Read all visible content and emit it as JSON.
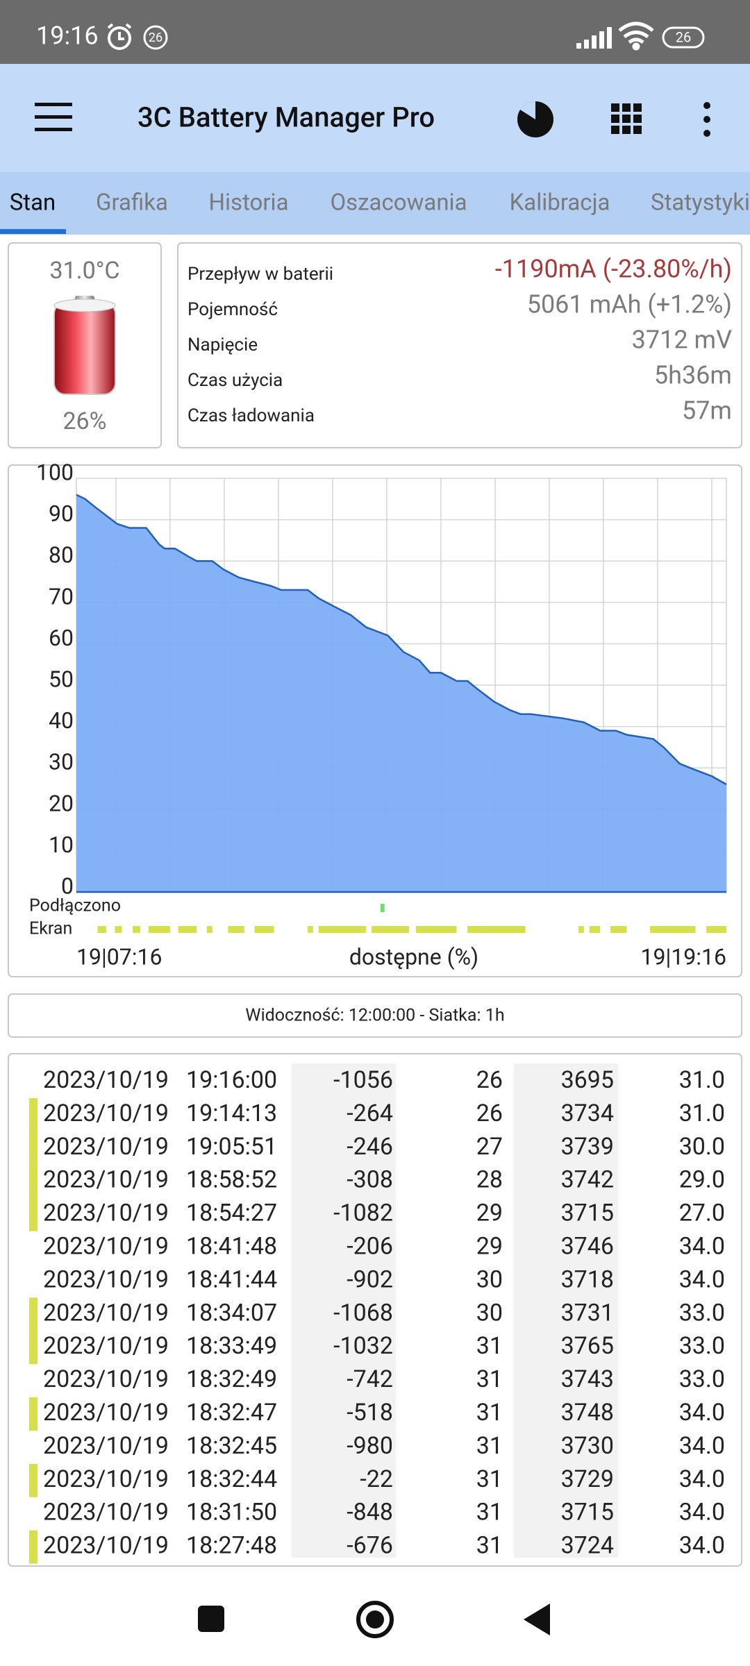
{
  "status_bar": {
    "time": "19:16",
    "notification": "26",
    "battery": "26"
  },
  "app_bar": {
    "title": "3C Battery Manager Pro"
  },
  "tabs": [
    "Stan",
    "Grafika",
    "Historia",
    "Oszacowania",
    "Kalibracja",
    "Statystyki"
  ],
  "battery": {
    "temperature": "31.0°C",
    "level": "26%"
  },
  "stats": [
    {
      "label": "Przepływ w baterii",
      "value": "-1190mA (-23.80%/h)"
    },
    {
      "label": "Pojemność",
      "value": "5061 mAh (+1.2%)"
    },
    {
      "label": "Napięcie",
      "value": "3712 mV"
    },
    {
      "label": "Czas użycia",
      "value": "5h36m"
    },
    {
      "label": "Czas ładowania",
      "value": "57m"
    }
  ],
  "chart_data": {
    "type": "area",
    "x_label": "dostępne (%)",
    "plugged_label": "Podłączono",
    "screen_label": "Ekran",
    "x": [
      0,
      0.16,
      0.35,
      0.55,
      0.75,
      0.98,
      1.29,
      1.53,
      1.63,
      1.82,
      2.08,
      2.22,
      2.51,
      2.71,
      3.0,
      3.29,
      3.59,
      3.78,
      4.27,
      4.47,
      4.76,
      5.06,
      5.35,
      5.55,
      5.75,
      6.04,
      6.33,
      6.53,
      6.73,
      7.02,
      7.22,
      7.41,
      7.71,
      8.0,
      8.2,
      8.39,
      8.98,
      9.37,
      9.67,
      9.96,
      10.16,
      10.65,
      10.84,
      11.14,
      11.33,
      11.53,
      11.73,
      12
    ],
    "values": [
      96,
      95,
      93,
      91,
      89,
      88,
      88,
      84,
      83,
      83,
      81,
      80,
      80,
      78,
      76,
      75,
      74,
      73,
      73,
      71,
      69,
      67,
      64,
      63,
      62,
      58,
      56,
      53,
      53,
      51,
      51,
      49,
      46,
      44,
      43,
      43,
      42,
      41,
      39,
      39,
      38,
      37,
      35,
      31,
      30,
      29,
      28,
      26
    ],
    "color": "#7eaef5",
    "line_color": "#2160b8",
    "xlim": [
      0,
      12
    ],
    "xticks": [
      {
        "value": 0,
        "label": "19|07:16"
      },
      {
        "value": 12,
        "label": "19|19:16"
      }
    ],
    "xgrid": [
      0.73,
      1.73,
      2.73,
      3.73,
      4.73,
      5.73,
      6.73,
      7.73,
      8.73,
      9.73,
      10.73,
      11.73
    ],
    "ylim": [
      0,
      100
    ],
    "yticks": [
      0,
      10,
      20,
      30,
      40,
      50,
      60,
      70,
      80,
      90,
      100
    ],
    "grid": true,
    "plugged": [
      5.65
    ],
    "screen_on": [
      [
        0.39,
        0.55
      ],
      [
        0.71,
        0.84
      ],
      [
        1.04,
        1.18
      ],
      [
        1.33,
        1.73
      ],
      [
        1.88,
        2.22
      ],
      [
        2.41,
        2.51
      ],
      [
        2.8,
        3.1
      ],
      [
        3.29,
        3.65
      ],
      [
        4.27,
        4.37
      ],
      [
        4.47,
        5.35
      ],
      [
        5.45,
        6.14
      ],
      [
        6.27,
        7.02
      ],
      [
        7.22,
        8.29
      ],
      [
        9.27,
        9.37
      ],
      [
        9.47,
        9.67
      ],
      [
        9.86,
        10.16
      ],
      [
        10.59,
        11.43
      ],
      [
        11.63,
        12
      ]
    ]
  },
  "visibility": "Widoczność: 12:00:00 - Siatka: 1h",
  "table": {
    "rows": [
      {
        "date": "2023/10/19",
        "time": "19:16:00",
        "current": "-1056",
        "level": "26",
        "voltage": "3695",
        "temp": "31.0",
        "screen": false
      },
      {
        "date": "2023/10/19",
        "time": "19:14:13",
        "current": "-264",
        "level": "26",
        "voltage": "3734",
        "temp": "31.0",
        "screen": true
      },
      {
        "date": "2023/10/19",
        "time": "19:05:51",
        "current": "-246",
        "level": "27",
        "voltage": "3739",
        "temp": "30.0",
        "screen": true
      },
      {
        "date": "2023/10/19",
        "time": "18:58:52",
        "current": "-308",
        "level": "28",
        "voltage": "3742",
        "temp": "29.0",
        "screen": true
      },
      {
        "date": "2023/10/19",
        "time": "18:54:27",
        "current": "-1082",
        "level": "29",
        "voltage": "3715",
        "temp": "27.0",
        "screen": true
      },
      {
        "date": "2023/10/19",
        "time": "18:41:48",
        "current": "-206",
        "level": "29",
        "voltage": "3746",
        "temp": "34.0",
        "screen": false
      },
      {
        "date": "2023/10/19",
        "time": "18:41:44",
        "current": "-902",
        "level": "30",
        "voltage": "3718",
        "temp": "34.0",
        "screen": false
      },
      {
        "date": "2023/10/19",
        "time": "18:34:07",
        "current": "-1068",
        "level": "30",
        "voltage": "3731",
        "temp": "33.0",
        "screen": true
      },
      {
        "date": "2023/10/19",
        "time": "18:33:49",
        "current": "-1032",
        "level": "31",
        "voltage": "3765",
        "temp": "33.0",
        "screen": true
      },
      {
        "date": "2023/10/19",
        "time": "18:32:49",
        "current": "-742",
        "level": "31",
        "voltage": "3743",
        "temp": "33.0",
        "screen": false
      },
      {
        "date": "2023/10/19",
        "time": "18:32:47",
        "current": "-518",
        "level": "31",
        "voltage": "3748",
        "temp": "34.0",
        "screen": true
      },
      {
        "date": "2023/10/19",
        "time": "18:32:45",
        "current": "-980",
        "level": "31",
        "voltage": "3730",
        "temp": "34.0",
        "screen": false
      },
      {
        "date": "2023/10/19",
        "time": "18:32:44",
        "current": "-22",
        "level": "31",
        "voltage": "3729",
        "temp": "34.0",
        "screen": true
      },
      {
        "date": "2023/10/19",
        "time": "18:31:50",
        "current": "-848",
        "level": "31",
        "voltage": "3715",
        "temp": "34.0",
        "screen": false
      },
      {
        "date": "2023/10/19",
        "time": "18:27:48",
        "current": "-676",
        "level": "31",
        "voltage": "3724",
        "temp": "34.0",
        "screen": true
      }
    ]
  }
}
